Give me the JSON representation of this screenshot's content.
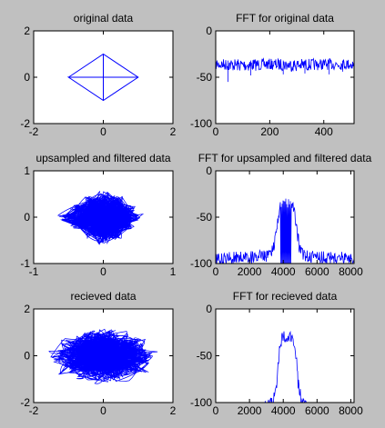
{
  "figure": {
    "background": "#c0c0c0",
    "line_color": "#0000ff",
    "axes_background": "#ffffff"
  },
  "chart_data": [
    {
      "id": "original",
      "type": "line",
      "title": "original data",
      "xlim": [
        -2,
        2
      ],
      "ylim": [
        -2,
        2
      ],
      "xticks": [
        -2,
        0,
        2
      ],
      "yticks": [
        -2,
        0,
        2
      ],
      "grid": false,
      "series": [
        {
          "style": "polyline",
          "x": [
            -1,
            0,
            1,
            0,
            -1,
            1
          ],
          "y": [
            0,
            1,
            0,
            -1,
            0,
            0
          ]
        },
        {
          "style": "polyline",
          "x": [
            0,
            0
          ],
          "y": [
            1,
            -1
          ]
        }
      ]
    },
    {
      "id": "fft_original",
      "type": "line",
      "title": "FFT for original data",
      "xlim": [
        0,
        512
      ],
      "ylim": [
        -100,
        0
      ],
      "xticks": [
        0,
        200,
        400
      ],
      "yticks": [
        -100,
        -50,
        0
      ],
      "grid": false,
      "series": [
        {
          "style": "noise",
          "x": [
            0,
            100,
            200,
            300,
            400,
            512
          ],
          "y": [
            -30,
            -30,
            -30,
            -30,
            -30,
            -30
          ],
          "spread": [
            [
              0,
              12
            ],
            [
              100,
              14
            ],
            [
              200,
              12
            ],
            [
              300,
              14
            ],
            [
              400,
              12
            ],
            [
              512,
              12
            ]
          ],
          "spikes": [
            [
              45,
              -55
            ],
            [
              130,
              -48
            ],
            [
              250,
              -47
            ],
            [
              330,
              -46
            ],
            [
              420,
              -47
            ],
            [
              470,
              -44
            ]
          ]
        }
      ]
    },
    {
      "id": "upsampled",
      "type": "line",
      "title": "upsampled and filtered data",
      "xlim": [
        -1,
        1
      ],
      "ylim": [
        -1,
        1
      ],
      "xticks": [
        -1,
        0,
        1
      ],
      "yticks": [
        -1,
        0,
        1
      ],
      "grid": false,
      "series": [
        {
          "style": "blob",
          "outline": [
            [
              -0.6,
              0
            ],
            [
              -0.4,
              0.2
            ],
            [
              -0.2,
              0.4
            ],
            [
              0,
              0.52
            ],
            [
              0.2,
              0.4
            ],
            [
              0.4,
              0.2
            ],
            [
              0.5,
              0
            ],
            [
              0.4,
              -0.2
            ],
            [
              0.2,
              -0.4
            ],
            [
              0,
              -0.52
            ],
            [
              -0.2,
              -0.4
            ],
            [
              -0.4,
              -0.2
            ]
          ],
          "noise": 0.07
        }
      ]
    },
    {
      "id": "fft_upsampled",
      "type": "line",
      "title": "FFT for upsampled and filtered data",
      "xlim": [
        0,
        8192
      ],
      "ylim": [
        -100,
        0
      ],
      "xticks": [
        0,
        2000,
        4000,
        6000,
        8000
      ],
      "yticks": [
        -100,
        -50,
        0
      ],
      "grid": false,
      "series": [
        {
          "style": "spectrum",
          "x": [
            0,
            3000,
            3400,
            3600,
            3800,
            4000,
            4200,
            4400,
            4600,
            4800,
            5000,
            5400,
            8192
          ],
          "y": [
            -88,
            -85,
            -78,
            -55,
            -30,
            -30,
            -30,
            -30,
            -32,
            -55,
            -78,
            -85,
            -88
          ],
          "spread": [
            [
              0,
              14
            ],
            [
              3000,
              14
            ],
            [
              3500,
              18
            ],
            [
              3800,
              12
            ],
            [
              4600,
              12
            ],
            [
              4900,
              18
            ],
            [
              5400,
              14
            ],
            [
              8192,
              14
            ]
          ],
          "notch": [
            3850,
            4500,
            -100
          ]
        }
      ]
    },
    {
      "id": "received",
      "type": "line",
      "title": "recieved data",
      "xlim": [
        -2,
        2
      ],
      "ylim": [
        -2,
        2
      ],
      "xticks": [
        -2,
        0,
        2
      ],
      "yticks": [
        -2,
        0,
        2
      ],
      "grid": false,
      "series": [
        {
          "style": "blob",
          "outline": [
            [
              -1.3,
              0
            ],
            [
              -1.0,
              0.5
            ],
            [
              -0.5,
              0.8
            ],
            [
              0,
              0.9
            ],
            [
              0.5,
              0.8
            ],
            [
              1.0,
              0.5
            ],
            [
              1.3,
              0
            ],
            [
              1.0,
              -0.5
            ],
            [
              0.5,
              -0.8
            ],
            [
              0,
              -0.9
            ],
            [
              -0.5,
              -0.8
            ],
            [
              -1.0,
              -0.5
            ]
          ],
          "noise": 0.28
        }
      ]
    },
    {
      "id": "fft_received",
      "type": "line",
      "title": "FFT for recieved data",
      "xlim": [
        0,
        8192
      ],
      "ylim": [
        -100,
        0
      ],
      "xticks": [
        0,
        2000,
        4000,
        6000,
        8000
      ],
      "yticks": [
        -100,
        -50,
        0
      ],
      "grid": false,
      "series": [
        {
          "style": "spectrum",
          "x": [
            0,
            2800,
            3100,
            3400,
            3600,
            3800,
            4000,
            4400,
            4700,
            4900,
            5100,
            5400,
            5700,
            8192
          ],
          "y": [
            -100,
            -100,
            -96,
            -92,
            -75,
            -30,
            -22,
            -22,
            -30,
            -75,
            -92,
            -96,
            -100,
            -100
          ],
          "spread": [
            [
              0,
              0
            ],
            [
              3000,
              8
            ],
            [
              3600,
              16
            ],
            [
              3800,
              14
            ],
            [
              4700,
              14
            ],
            [
              4900,
              16
            ],
            [
              5500,
              8
            ],
            [
              8192,
              0
            ]
          ],
          "notch": null
        }
      ]
    }
  ]
}
